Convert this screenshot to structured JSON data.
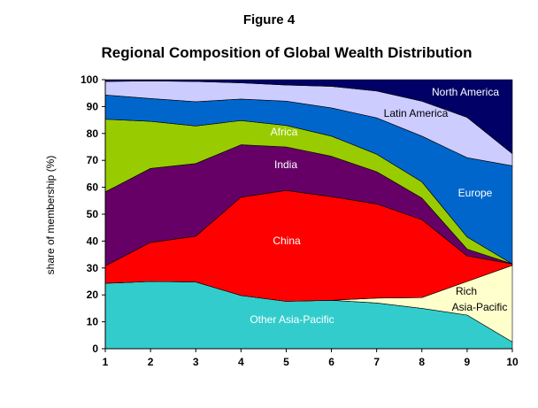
{
  "figure_label": "Figure 4",
  "chart_data": {
    "type": "area",
    "title": "Regional Composition of Global Wealth Distribution",
    "xlabel": "",
    "ylabel": "share of membership (%)",
    "x": [
      1,
      2,
      3,
      4,
      5,
      6,
      7,
      8,
      9,
      10
    ],
    "xlim": [
      1,
      10
    ],
    "ylim": [
      0,
      100
    ],
    "yticks": [
      0,
      10,
      20,
      30,
      40,
      50,
      60,
      70,
      80,
      90,
      100
    ],
    "grid": false,
    "legend": "inline labels",
    "series": [
      {
        "name": "Other Asia-Pacific",
        "color": "#33CCCC",
        "label_color": "#ffffff",
        "values": [
          24.3,
          25.0,
          24.8,
          19.8,
          17.6,
          18.0,
          17.0,
          15.0,
          12.5,
          2.5
        ]
      },
      {
        "name": "Rich Asia-Pacific",
        "color": "#FFFFCC",
        "label_color": "#000000",
        "values": [
          0.0,
          0.0,
          0.0,
          0.0,
          0.0,
          0.0,
          1.8,
          4.0,
          12.5,
          28.5
        ]
      },
      {
        "name": "China",
        "color": "#FF0000",
        "label_color": "#ffffff",
        "values": [
          6.5,
          14.5,
          17.0,
          36.5,
          41.2,
          38.5,
          35.0,
          29.0,
          9.5,
          0.5
        ]
      },
      {
        "name": "India",
        "color": "#660066",
        "label_color": "#ffffff",
        "values": [
          27.5,
          27.5,
          27.0,
          19.5,
          16.2,
          15.0,
          12.0,
          8.0,
          2.5,
          0.0
        ]
      },
      {
        "name": "Africa",
        "color": "#99CC00",
        "label_color": "#ffffff",
        "values": [
          27.0,
          17.5,
          14.0,
          9.0,
          8.0,
          7.5,
          6.5,
          6.0,
          4.5,
          0.0
        ]
      },
      {
        "name": "Europe",
        "color": "#0066CC",
        "label_color": "#ffffff",
        "values": [
          9.0,
          8.5,
          9.0,
          8.0,
          9.0,
          10.5,
          13.5,
          17.0,
          29.5,
          36.5
        ]
      },
      {
        "name": "Latin America",
        "color": "#CCCCFF",
        "label_color": "#000000",
        "values": [
          5.0,
          6.5,
          7.5,
          6.0,
          6.0,
          8.0,
          10.0,
          13.0,
          15.0,
          4.5
        ]
      },
      {
        "name": "North America",
        "color": "#000066",
        "label_color": "#ffffff",
        "values": [
          0.7,
          0.5,
          0.7,
          1.2,
          2.0,
          2.5,
          4.2,
          8.0,
          14.0,
          27.5
        ]
      }
    ]
  }
}
